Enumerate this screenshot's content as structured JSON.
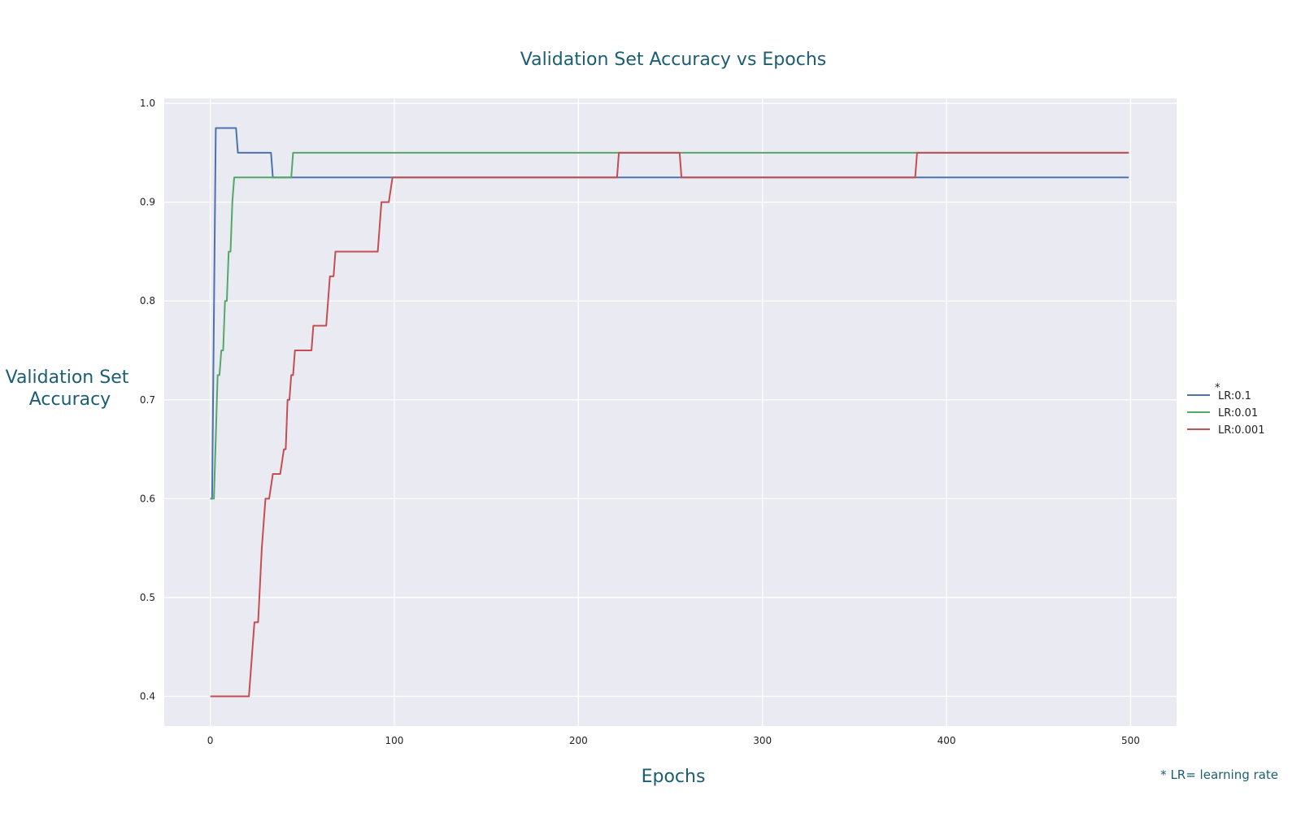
{
  "chart_data": {
    "type": "line",
    "title": "Validation Set Accuracy vs Epochs",
    "xlabel": "Epochs",
    "ylabel_lines": [
      "Validation Set",
      "Accuracy"
    ],
    "xlim": [
      -25,
      525
    ],
    "ylim": [
      0.37,
      1.005
    ],
    "x_ticks": [
      0,
      100,
      200,
      300,
      400,
      500
    ],
    "y_ticks": [
      0.4,
      0.5,
      0.6,
      0.7,
      0.8,
      0.9,
      1.0
    ],
    "grid": true,
    "legend_position": "right",
    "legend_marker": "*",
    "footnote": "* LR= learning rate",
    "series": [
      {
        "name": "LR:0.1",
        "color": "#4c72b0",
        "points": [
          [
            0,
            0.6
          ],
          [
            1,
            0.6
          ],
          [
            3,
            0.975
          ],
          [
            14,
            0.975
          ],
          [
            15,
            0.95
          ],
          [
            33,
            0.95
          ],
          [
            34,
            0.925
          ],
          [
            499,
            0.925
          ]
        ]
      },
      {
        "name": "LR:0.01",
        "color": "#55a868",
        "points": [
          [
            0,
            0.6
          ],
          [
            2,
            0.6
          ],
          [
            4,
            0.725
          ],
          [
            5,
            0.725
          ],
          [
            6,
            0.75
          ],
          [
            7,
            0.75
          ],
          [
            8,
            0.8
          ],
          [
            9,
            0.8
          ],
          [
            10,
            0.85
          ],
          [
            11,
            0.85
          ],
          [
            12,
            0.9
          ],
          [
            13,
            0.925
          ],
          [
            44,
            0.925
          ],
          [
            45,
            0.95
          ],
          [
            499,
            0.95
          ]
        ]
      },
      {
        "name": "LR:0.001",
        "color": "#c44e52",
        "points": [
          [
            0,
            0.4
          ],
          [
            21,
            0.4
          ],
          [
            24,
            0.475
          ],
          [
            26,
            0.475
          ],
          [
            28,
            0.55
          ],
          [
            30,
            0.6
          ],
          [
            32,
            0.6
          ],
          [
            34,
            0.625
          ],
          [
            38,
            0.625
          ],
          [
            40,
            0.65
          ],
          [
            41,
            0.65
          ],
          [
            42,
            0.7
          ],
          [
            43,
            0.7
          ],
          [
            44,
            0.725
          ],
          [
            45,
            0.725
          ],
          [
            46,
            0.75
          ],
          [
            55,
            0.75
          ],
          [
            56,
            0.775
          ],
          [
            63,
            0.775
          ],
          [
            65,
            0.825
          ],
          [
            67,
            0.825
          ],
          [
            68,
            0.85
          ],
          [
            91,
            0.85
          ],
          [
            93,
            0.9
          ],
          [
            97,
            0.9
          ],
          [
            99,
            0.925
          ],
          [
            221,
            0.925
          ],
          [
            222,
            0.95
          ],
          [
            255,
            0.95
          ],
          [
            256,
            0.925
          ],
          [
            383,
            0.925
          ],
          [
            384,
            0.95
          ],
          [
            499,
            0.95
          ]
        ]
      }
    ]
  }
}
